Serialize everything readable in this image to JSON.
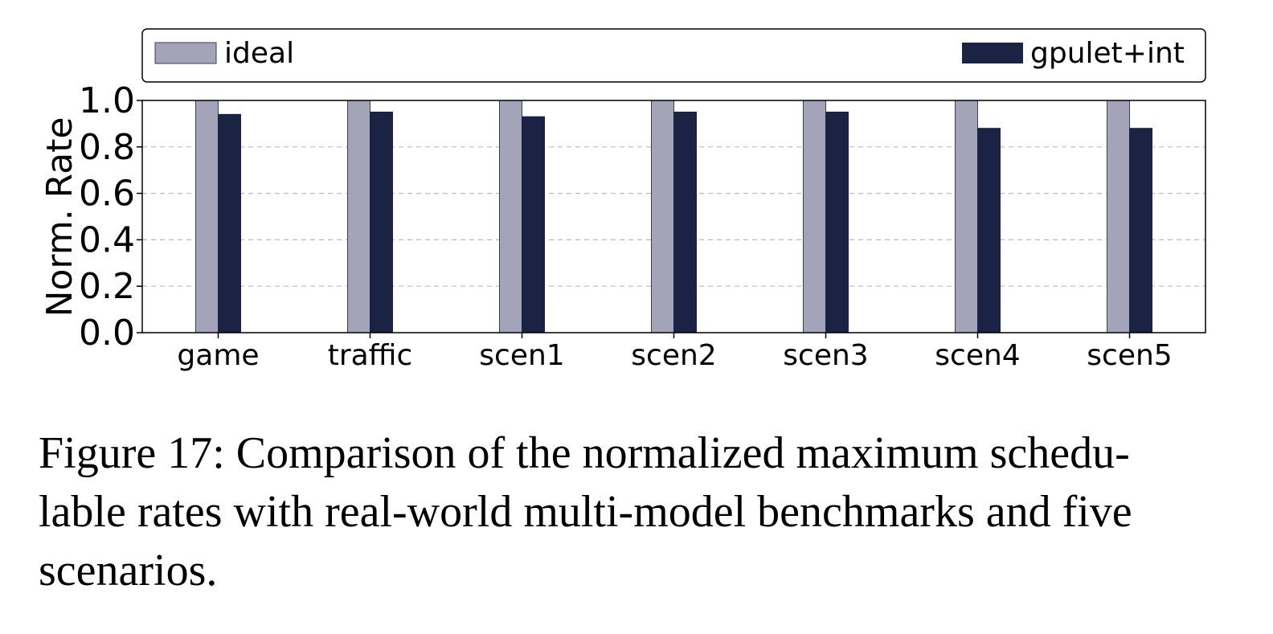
{
  "chart_data": {
    "type": "bar",
    "categories": [
      "game",
      "traffic",
      "scen1",
      "scen2",
      "scen3",
      "scen4",
      "scen5"
    ],
    "series": [
      {
        "name": "ideal",
        "values": [
          1.0,
          1.0,
          1.0,
          1.0,
          1.0,
          1.0,
          1.0
        ],
        "color": "#a3a4b8"
      },
      {
        "name": "gpulet+int",
        "values": [
          0.94,
          0.95,
          0.93,
          0.95,
          0.95,
          0.88,
          0.88
        ],
        "color": "#1a2344"
      }
    ],
    "title": "",
    "xlabel": "",
    "ylabel": "Norm. Rate",
    "ylim": [
      0.0,
      1.0
    ],
    "yticks": [
      "0.0",
      "0.2",
      "0.4",
      "0.6",
      "0.8",
      "1.0"
    ],
    "grid": "horizontal dashed",
    "legend_position": "top"
  },
  "caption": {
    "line1": "Figure 17: Comparison of the normalized maximum schedu-",
    "line2": "lable rates with real-world multi-model benchmarks and five",
    "line3": "scenarios."
  }
}
